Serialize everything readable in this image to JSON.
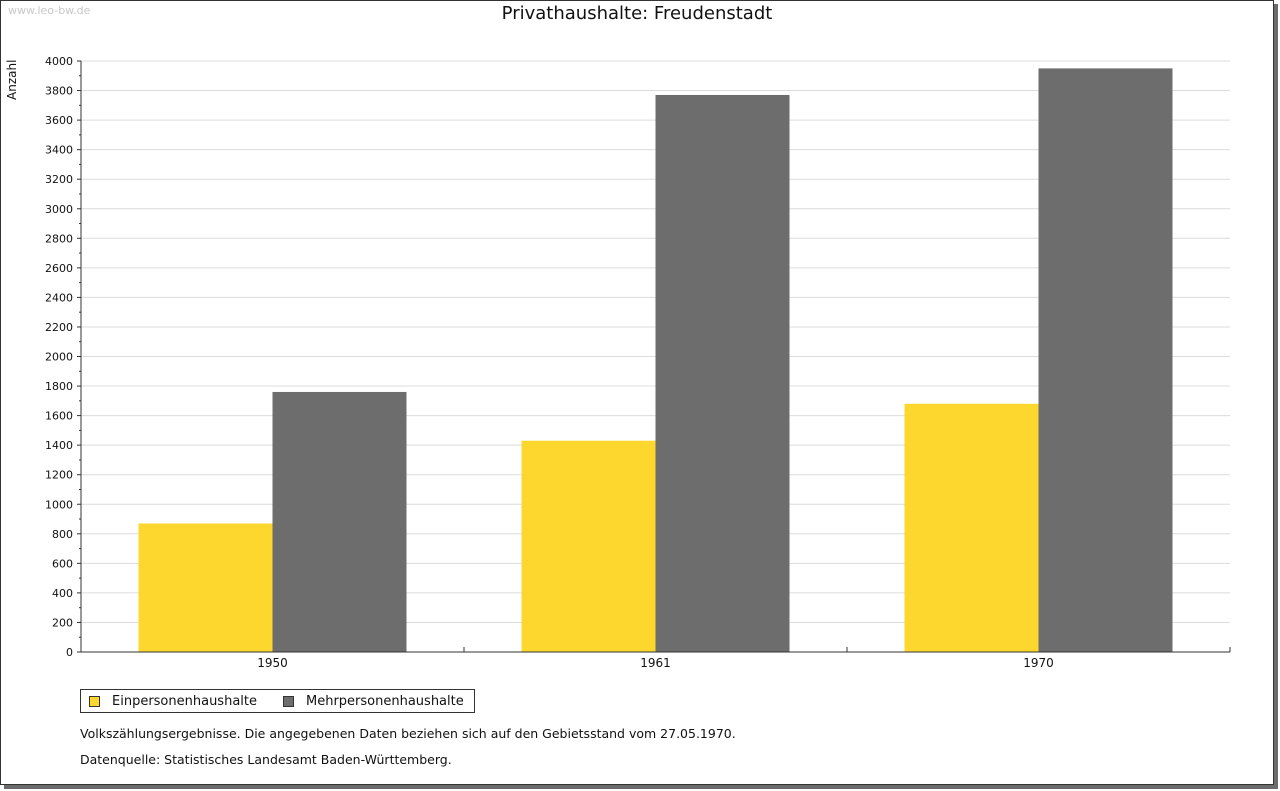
{
  "watermark": "www.leo-bw.de",
  "chart_data": {
    "type": "bar",
    "title": "Privathaushalte: Freudenstadt",
    "ylabel": "Anzahl",
    "xlabel": "",
    "categories": [
      "1950",
      "1961",
      "1970"
    ],
    "series": [
      {
        "name": "Einpersonenhaushalte",
        "values": [
          870,
          1430,
          1680
        ],
        "color": "#fdd72d"
      },
      {
        "name": "Mehrpersonenhaushalte",
        "values": [
          1760,
          3770,
          3950
        ],
        "color": "#6d6d6d"
      }
    ],
    "ylim": [
      0,
      4000
    ],
    "yticks": [
      0,
      200,
      400,
      600,
      800,
      1000,
      1200,
      1400,
      1600,
      1800,
      2000,
      2200,
      2400,
      2600,
      2800,
      3000,
      3200,
      3400,
      3600,
      3800,
      4000
    ],
    "grid": true,
    "legend_position": "bottom-left"
  },
  "notes": {
    "census": "Volkszählungsergebnisse. Die angegebenen Daten beziehen sich auf den Gebietsstand vom 27.05.1970.",
    "source": "Datenquelle: Statistisches Landesamt Baden-Württemberg."
  }
}
